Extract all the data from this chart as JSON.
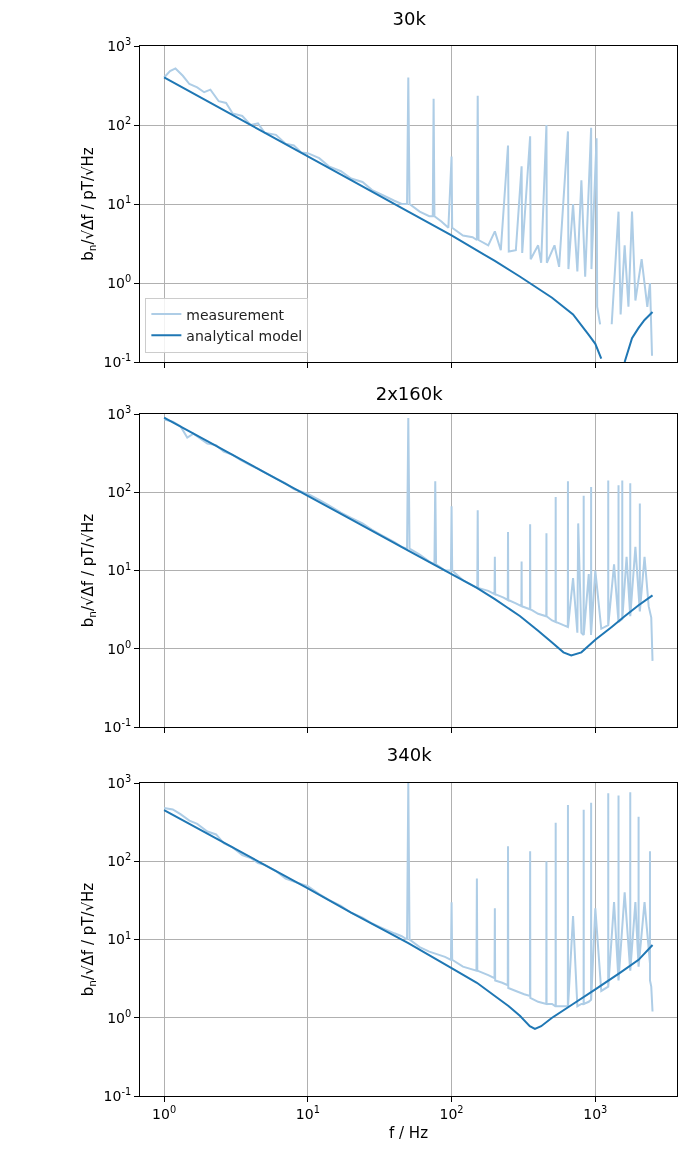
{
  "chart_data": [
    {
      "type": "line",
      "title": "30k",
      "ylabel": "b$_{n}$/√Δf / pT/√Hz",
      "log": "xy",
      "grid": true,
      "legend": "bottom left",
      "tick_labels": "y",
      "xlim": [
        0.68,
        3700
      ],
      "xticks": [
        {
          "value": 1,
          "label": null
        },
        {
          "value": 10,
          "label": null
        },
        {
          "value": 100,
          "label": null
        },
        {
          "value": 1000,
          "label": null
        }
      ],
      "ylim": [
        0.1,
        1000
      ],
      "yticks": [
        {
          "value": 0.1,
          "label": "10$^{-1}$"
        },
        {
          "value": 1,
          "label": "10$^{0}$"
        },
        {
          "value": 10,
          "label": "10$^{1}$"
        },
        {
          "value": 100,
          "label": "10$^{2}$"
        },
        {
          "value": 1000,
          "label": "10$^{3}$"
        }
      ],
      "series": [
        {
          "name": "measurement",
          "color": "#aecde6",
          "x": [
            1,
            1.1,
            1.2,
            1.35,
            1.5,
            1.7,
            1.9,
            2.1,
            2.4,
            2.7,
            3,
            3.5,
            4,
            4.5,
            5,
            6,
            7,
            8,
            9,
            10,
            12,
            14,
            17,
            20,
            24,
            28,
            33,
            40,
            45,
            49,
            50,
            51,
            60,
            70,
            74,
            75,
            76,
            85,
            95,
            100,
            101,
            120,
            140,
            150,
            152,
            154,
            180,
            200,
            220,
            247,
            250,
            280,
            307,
            310,
            352,
            355,
            400,
            420,
            457,
            460,
            520,
            560,
            645,
            650,
            700,
            750,
            800,
            850,
            935,
            940,
            1020,
            1030,
            1080,
            1150,
            1250,
            1300,
            1450,
            1500,
            1600,
            1700,
            1800,
            1900,
            2100,
            2300,
            2400,
            2480
          ],
          "values": [
            400,
            480,
            520,
            420,
            330,
            300,
            260,
            280,
            200,
            190,
            140,
            130,
            100,
            105,
            80,
            75,
            58,
            55,
            45,
            44,
            38,
            30,
            26,
            21,
            19,
            15,
            13,
            11,
            10,
            10,
            400,
            10,
            8,
            7,
            7,
            215,
            7,
            6,
            5,
            40,
            5,
            4,
            3.8,
            3.5,
            235,
            3.5,
            3,
            4.5,
            2.6,
            55,
            2.5,
            2.6,
            30,
            2.4,
            72,
            2,
            3,
            1.8,
            100,
            1.8,
            3,
            1.6,
            83,
            1.5,
            10,
            1.4,
            20,
            1.2,
            92,
            1.5,
            68,
            0.5,
            0.3,
            null,
            null,
            0.3,
            8,
            0.4,
            3,
            0.5,
            8,
            0.6,
            2,
            0.5,
            1,
            0.12
          ]
        },
        {
          "name": "analytical model",
          "color": "#1f77b4",
          "x": [
            1,
            2,
            5,
            10,
            20,
            50,
            100,
            200,
            300,
            500,
            700,
            900,
            1000,
            1100,
            1150,
            1500,
            1600,
            1800,
            2000,
            2200,
            2500
          ],
          "values": [
            400,
            200,
            80,
            40,
            20,
            8,
            4,
            1.9,
            1.2,
            0.65,
            0.4,
            0.22,
            0.17,
            0.11,
            null,
            null,
            0.1,
            0.2,
            0.27,
            0.34,
            0.43
          ]
        }
      ]
    },
    {
      "type": "line",
      "title": "2x160k",
      "ylabel": "b$_{n}$/√Δf / pT/√Hz",
      "log": "xy",
      "grid": true,
      "legend": false,
      "tick_labels": "y",
      "xlim": [
        0.68,
        3700
      ],
      "xticks": [
        {
          "value": 1,
          "label": null
        },
        {
          "value": 10,
          "label": null
        },
        {
          "value": 100,
          "label": null
        },
        {
          "value": 1000,
          "label": null
        }
      ],
      "ylim": [
        0.1,
        1000
      ],
      "yticks": [
        {
          "value": 0.1,
          "label": "10$^{-1}$"
        },
        {
          "value": 1,
          "label": "10$^{0}$"
        },
        {
          "value": 10,
          "label": "10$^{1}$"
        },
        {
          "value": 100,
          "label": "10$^{2}$"
        },
        {
          "value": 1000,
          "label": "10$^{3}$"
        }
      ],
      "series": [
        {
          "color": "#aecde6",
          "x": [
            1,
            1.15,
            1.3,
            1.45,
            1.6,
            1.8,
            2,
            2.3,
            2.6,
            3,
            3.4,
            4,
            4.5,
            5,
            6,
            7,
            8,
            10,
            12,
            14,
            17,
            20,
            24,
            28,
            33,
            40,
            45,
            49,
            50,
            51,
            60,
            70,
            76,
            77,
            78,
            90,
            99,
            100,
            101,
            120,
            151,
            152,
            153,
            180,
            199,
            200,
            201,
            230,
            246,
            247,
            248,
            280,
            306,
            307,
            308,
            351,
            352,
            353,
            400,
            456,
            457,
            458,
            500,
            529,
            530,
            531,
            600,
            644,
            645,
            646,
            700,
            750,
            760,
            800,
            829,
            830,
            831,
            900,
            934,
            935,
            936,
            1000,
            1100,
            1229,
            1230,
            1231,
            1350,
            1449,
            1450,
            1451,
            1539,
            1540,
            1541,
            1650,
            1749,
            1750,
            1751,
            1900,
            2039,
            2040,
            2041,
            2200,
            2350,
            2450,
            2500
          ],
          "values": [
            850,
            800,
            700,
            500,
            560,
            480,
            420,
            400,
            330,
            300,
            260,
            220,
            200,
            180,
            150,
            130,
            110,
            95,
            80,
            68,
            55,
            47,
            40,
            33,
            28,
            23,
            20,
            19,
            890,
            19,
            16,
            13,
            12,
            138,
            12,
            10,
            10,
            66,
            10,
            7.5,
            6,
            59,
            6,
            5.5,
            5,
            15,
            5,
            4.5,
            4.2,
            31,
            4.2,
            3.8,
            3.5,
            13,
            3.5,
            3.2,
            39,
            3.2,
            2.8,
            2.6,
            30,
            2.6,
            2.3,
            2.2,
            87,
            2.2,
            2,
            1.9,
            138,
            1.9,
            8,
            1.6,
            40,
            1.6,
            1.5,
            90,
            1.5,
            9,
            1.5,
            117,
            1.6,
            10,
            1.8,
            2,
            141,
            2,
            12,
            2.2,
            123,
            2.2,
            2.4,
            141,
            2.4,
            15,
            2.6,
            130,
            2.6,
            20,
            3,
            72,
            3,
            15,
            3.5,
            2.5,
            0.7
          ]
        },
        {
          "color": "#1f77b4",
          "x": [
            1,
            2,
            5,
            10,
            20,
            50,
            100,
            150,
            200,
            300,
            400,
            500,
            600,
            680,
            800,
            1000,
            1300,
            1600,
            2000,
            2500
          ],
          "values": [
            900,
            450,
            180,
            90,
            45,
            18,
            9,
            6,
            4.3,
            2.6,
            1.7,
            1.2,
            0.9,
            0.82,
            0.9,
            1.3,
            1.9,
            2.6,
            3.6,
            4.8
          ]
        }
      ]
    },
    {
      "type": "line",
      "title": "340k",
      "xlabel": "f / Hz",
      "ylabel": "b$_{n}$/√Δf / pT/√Hz",
      "log": "xy",
      "grid": true,
      "legend": false,
      "xlim": [
        0.68,
        3700
      ],
      "xticks": [
        {
          "value": 1,
          "label": "10$^{0}$"
        },
        {
          "value": 10,
          "label": "10$^{1}$"
        },
        {
          "value": 100,
          "label": "10$^{2}$"
        },
        {
          "value": 1000,
          "label": "10$^{3}$"
        }
      ],
      "ylim": [
        0.1,
        1000
      ],
      "yticks": [
        {
          "value": 0.1,
          "label": "10$^{-1}$"
        },
        {
          "value": 1,
          "label": "10$^{0}$"
        },
        {
          "value": 10,
          "label": "10$^{1}$"
        },
        {
          "value": 100,
          "label": "10$^{2}$"
        },
        {
          "value": 1000,
          "label": "10$^{3}$"
        }
      ],
      "series": [
        {
          "color": "#aecde6",
          "x": [
            1,
            1.15,
            1.3,
            1.5,
            1.7,
            2,
            2.3,
            2.6,
            3,
            3.5,
            4,
            4.5,
            5,
            6,
            7,
            8,
            10,
            12,
            14,
            17,
            20,
            24,
            28,
            33,
            40,
            45,
            49,
            50,
            51,
            60,
            70,
            90,
            99,
            100,
            101,
            120,
            149,
            150,
            151,
            180,
            199,
            200,
            201,
            225,
            246,
            247,
            248,
            280,
            320,
            351,
            352,
            353,
            400,
            456,
            457,
            458,
            500,
            529,
            530,
            531,
            600,
            644,
            645,
            646,
            700,
            750,
            800,
            829,
            830,
            831,
            900,
            934,
            935,
            936,
            1000,
            1100,
            1229,
            1230,
            1231,
            1350,
            1449,
            1450,
            1451,
            1600,
            1749,
            1750,
            1751,
            1900,
            1999,
            2000,
            2001,
            2200,
            2399,
            2400,
            2401,
            2450,
            2500
          ],
          "values": [
            480,
            460,
            400,
            330,
            300,
            240,
            220,
            170,
            150,
            120,
            110,
            95,
            90,
            75,
            60,
            55,
            48,
            38,
            32,
            27,
            22,
            19,
            16,
            14,
            12,
            11,
            10,
            1000,
            10,
            8,
            7,
            6,
            5.5,
            30,
            5.5,
            4.5,
            4,
            60,
            4,
            3.5,
            3.2,
            25,
            3,
            2.8,
            2.6,
            155,
            2.4,
            2.2,
            2,
            1.9,
            134,
            1.8,
            1.6,
            1.5,
            100,
            1.5,
            1.5,
            1.4,
            310,
            1.4,
            1.4,
            1.4,
            525,
            1.4,
            20,
            1.4,
            1.5,
            1.5,
            455,
            1.5,
            1.6,
            1.7,
            560,
            1.7,
            25,
            2.2,
            2.5,
            740,
            2.5,
            30,
            3,
            690,
            3,
            40,
            4,
            760,
            4,
            30,
            4.5,
            370,
            4.5,
            30,
            5,
            134,
            3,
            2.5,
            1.2
          ]
        },
        {
          "color": "#1f77b4",
          "x": [
            1,
            2,
            5,
            10,
            20,
            50,
            100,
            150,
            200,
            250,
            300,
            350,
            380,
            420,
            500,
            700,
            1000,
            1500,
            2000,
            2500
          ],
          "values": [
            450,
            225,
            90,
            45,
            22,
            9,
            4.3,
            2.8,
            1.9,
            1.4,
            1.05,
            0.78,
            0.72,
            0.78,
            1.0,
            1.5,
            2.3,
            3.8,
            5.5,
            8.5
          ]
        }
      ]
    }
  ]
}
